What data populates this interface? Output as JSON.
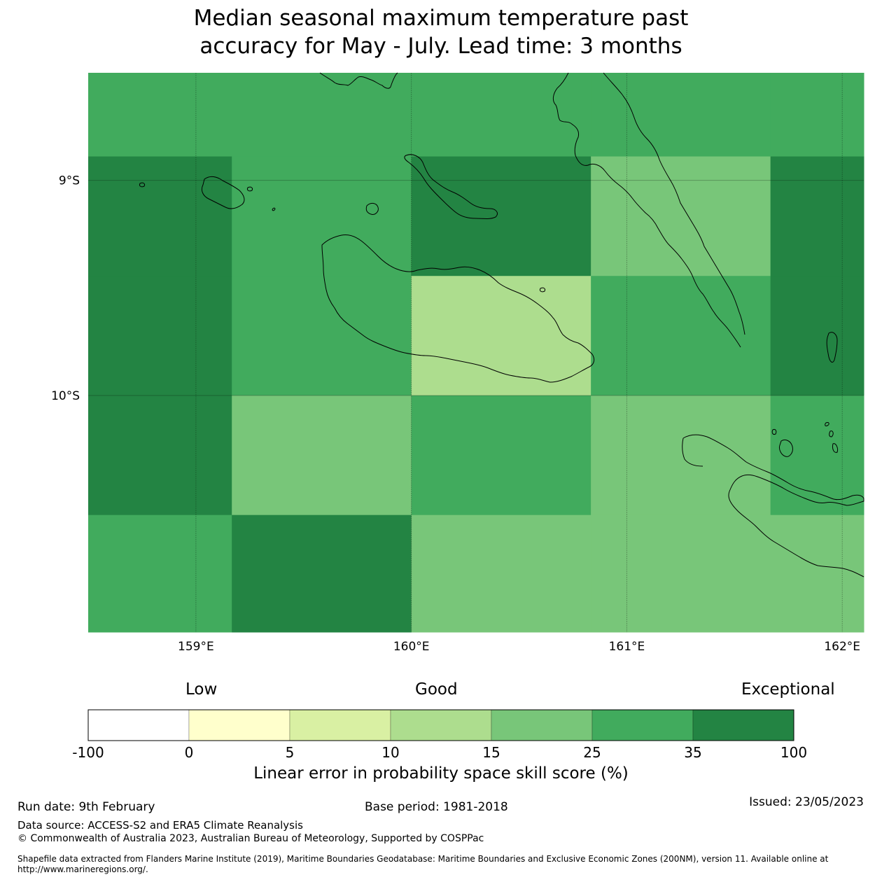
{
  "title_line1": "Median seasonal maximum temperature past",
  "title_line2": "accuracy for May - July. Lead time: 3 months",
  "map": {
    "lon_range": [
      158.5,
      162.1
    ],
    "lat_range": [
      -11.1,
      -8.5
    ],
    "x_ticks": [
      {
        "value": 159,
        "label": "159°E"
      },
      {
        "value": 160,
        "label": "160°E"
      },
      {
        "value": 161,
        "label": "161°E"
      },
      {
        "value": 162,
        "label": "162°E"
      }
    ],
    "y_ticks": [
      {
        "value": -9,
        "label": "9°S"
      },
      {
        "value": -10,
        "label": "10°S"
      }
    ],
    "lon_edges": [
      158.5,
      159.1667,
      160.0,
      160.8333,
      161.6667,
      162.1
    ],
    "lat_edges": [
      -8.5,
      -8.8889,
      -9.4444,
      -10.0,
      -10.5556,
      -11.1
    ],
    "grid_bin_index": [
      [
        5,
        5,
        5,
        5,
        5
      ],
      [
        6,
        5,
        6,
        4,
        6
      ],
      [
        6,
        5,
        3,
        5,
        6
      ],
      [
        6,
        4,
        5,
        4,
        5
      ],
      [
        5,
        6,
        4,
        4,
        4
      ]
    ],
    "land_color": "none",
    "coast_color": "#000000"
  },
  "colorbar": {
    "categories": [
      {
        "label": "Low",
        "at": 0.16
      },
      {
        "label": "Good",
        "at": 0.5
      },
      {
        "label": "Exceptional",
        "at": 1.0
      }
    ],
    "boundaries": [
      "-100",
      "0",
      "5",
      "10",
      "15",
      "25",
      "35",
      "100"
    ],
    "colors": [
      "#ffffff",
      "#ffffcc",
      "#d9f0a3",
      "#addd8e",
      "#78c679",
      "#41ab5d",
      "#238443"
    ],
    "label": "Linear error in probability space skill score (%)"
  },
  "footer": {
    "run_date": "Run date: 9th February",
    "base_period": "Base period: 1981-2018",
    "issued": "Issued: 23/05/2023",
    "data_source": "Data source: ACCESS-S2 and ERA5 Climate Reanalysis",
    "copyright": "© Commonwealth of Australia 2023, Australian Bureau of Meteorology, Supported by COSPPac",
    "shapefile": "Shapefile data extracted from Flanders Marine Institute (2019), Maritime Boundaries Geodatabase: Maritime Boundaries and Exclusive Economic Zones (200NM), version 11. Available online at http://www.marineregions.org/."
  }
}
